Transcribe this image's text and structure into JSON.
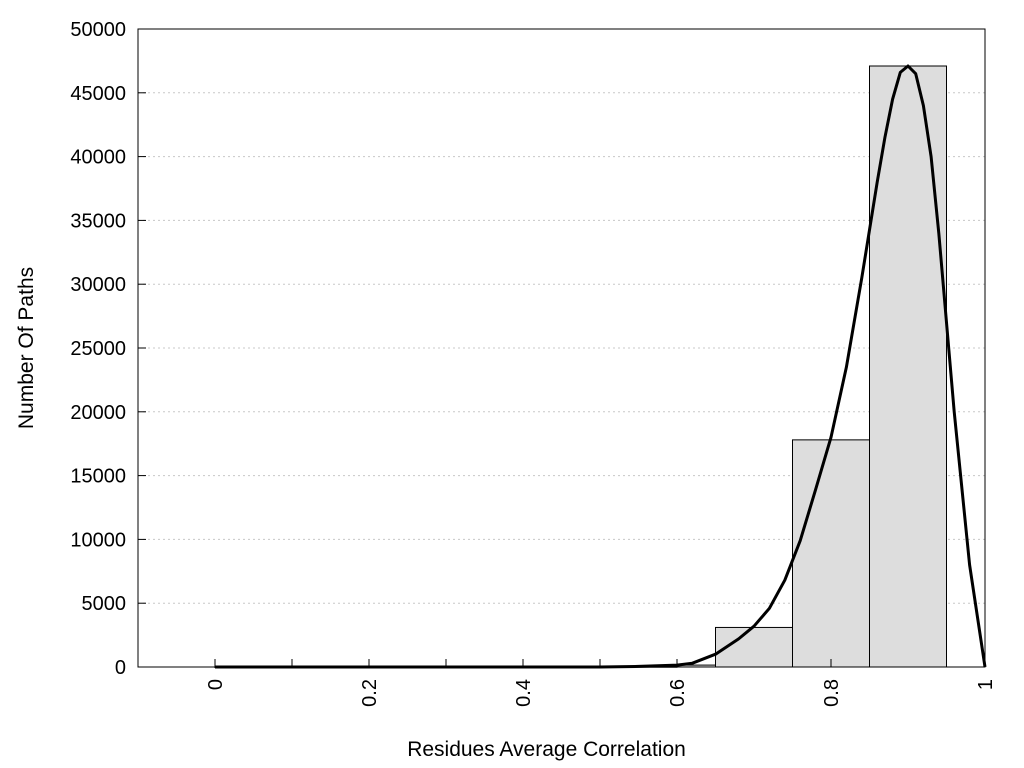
{
  "chart_data": {
    "type": "bar",
    "title": "",
    "xlabel": "Residues Average Correlation",
    "ylabel": "Number Of Paths",
    "xlim": [
      -0.1,
      1.0
    ],
    "ylim": [
      0,
      50000
    ],
    "x_ticks": [
      "0",
      "0.2",
      "0.4",
      "0.6",
      "0.8",
      "1"
    ],
    "x_tick_values": [
      0,
      0.2,
      0.4,
      0.6,
      0.8,
      1
    ],
    "x_minor_ticks": [
      0.1,
      0.3,
      0.5
    ],
    "y_ticks": [
      "0",
      "5000",
      "10000",
      "15000",
      "20000",
      "25000",
      "30000",
      "35000",
      "40000",
      "45000",
      "50000"
    ],
    "y_tick_values": [
      0,
      5000,
      10000,
      15000,
      20000,
      25000,
      30000,
      35000,
      40000,
      45000,
      50000
    ],
    "grid": "horizontal dotted",
    "bins": [
      {
        "x0": 0.0,
        "x1": 0.1,
        "value": 0
      },
      {
        "x0": 0.1,
        "x1": 0.2,
        "value": 0
      },
      {
        "x0": 0.2,
        "x1": 0.3,
        "value": 0
      },
      {
        "x0": 0.3,
        "x1": 0.4,
        "value": 0
      },
      {
        "x0": 0.4,
        "x1": 0.5,
        "value": 0
      },
      {
        "x0": 0.5,
        "x1": 0.6,
        "value": 20
      },
      {
        "x0": 0.6,
        "x1": 0.65,
        "value": 150
      },
      {
        "x0": 0.65,
        "x1": 0.75,
        "value": 3100
      },
      {
        "x0": 0.75,
        "x1": 0.85,
        "value": 17800
      },
      {
        "x0": 0.85,
        "x1": 0.95,
        "value": 47100
      }
    ],
    "curve": {
      "x": [
        0,
        0.5,
        0.55,
        0.6,
        0.62,
        0.65,
        0.68,
        0.7,
        0.72,
        0.74,
        0.76,
        0.78,
        0.8,
        0.82,
        0.84,
        0.86,
        0.87,
        0.88,
        0.89,
        0.9,
        0.91,
        0.92,
        0.93,
        0.94,
        0.96,
        0.98,
        1.0
      ],
      "y": [
        0,
        0,
        50,
        150,
        300,
        1000,
        2200,
        3200,
        4600,
        6800,
        9900,
        13900,
        18000,
        23500,
        30500,
        38000,
        41500,
        44500,
        46600,
        47100,
        46500,
        44000,
        40000,
        34000,
        20000,
        8000,
        0
      ]
    },
    "colors": {
      "bar_fill": "#dddddd",
      "bar_stroke": "#000000",
      "curve": "#000000",
      "grid": "#c8c8c8"
    }
  }
}
